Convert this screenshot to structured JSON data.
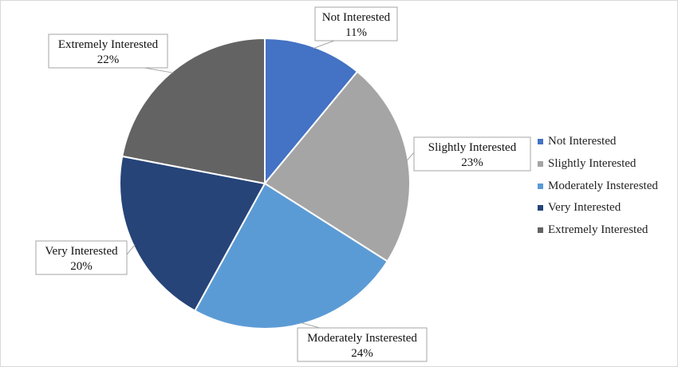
{
  "chart_data": {
    "type": "pie",
    "title": "",
    "start_angle_deg": 0,
    "direction": "clockwise",
    "slices": [
      {
        "name": "Not Interested",
        "legend_label": "Not Interested",
        "value": 11,
        "value_label": "11%",
        "color": "#4472c4"
      },
      {
        "name": "Slightly Interested",
        "legend_label": "Slightly Interested",
        "value": 23,
        "value_label": "23%",
        "color": "#a5a5a5"
      },
      {
        "name": "Moderately Insterested",
        "legend_label": "Moderately Insterested",
        "value": 24,
        "value_label": "24%",
        "color": "#5b9bd5"
      },
      {
        "name": "Very Interested",
        "legend_label": "Very Interested",
        "value": 20,
        "value_label": "20%",
        "color": "#264478"
      },
      {
        "name": "Extremely Interested",
        "legend_label": "Extremely Interested",
        "value": 22,
        "value_label": "22%",
        "color": "#636363"
      }
    ],
    "legend_position": "right",
    "data_labels": "callouts"
  }
}
